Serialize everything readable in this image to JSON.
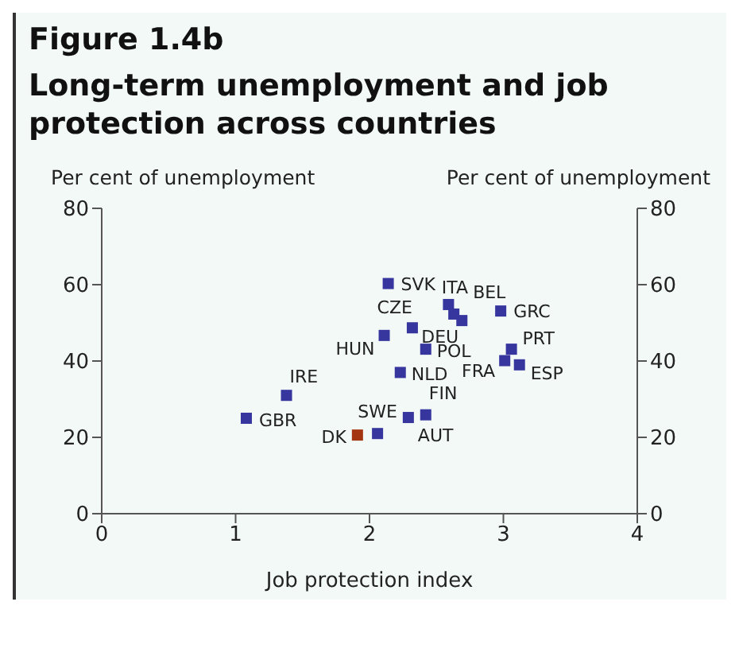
{
  "chart_data": {
    "type": "scatter",
    "title": "Figure 1.4b",
    "subtitle": "Long-term unemployment and job protection across countries",
    "xlabel": "Job protection index",
    "ylabel": "Per cent of unemployment",
    "y2label": "Per cent of unemployment",
    "series": [
      {
        "color": "#36369e",
        "x": [
          2.14,
          2.59,
          2.63,
          2.69,
          2.98,
          2.32,
          2.11,
          2.42,
          3.06,
          3.01,
          3.12,
          2.23,
          1.38,
          1.08,
          2.06,
          2.29,
          2.42
        ],
        "values": [
          60.3,
          54.8,
          52.3,
          50.6,
          53.1,
          48.7,
          46.7,
          43.1,
          43.1,
          40.1,
          39.0,
          37.0,
          31.0,
          25.0,
          21.0,
          25.2,
          25.9
        ]
      },
      {
        "color": "#a33510",
        "x": [
          1.91
        ],
        "values": [
          20.6
        ]
      }
    ],
    "annotations": [
      {
        "text": "SVK",
        "x": 2.14,
        "y": 60.3
      },
      {
        "text": "ITA",
        "x": 2.59,
        "y": 54.8
      },
      {
        "text": "BEL",
        "x": 2.63,
        "y": 52.3
      },
      {
        "text": "DEU",
        "x": 2.69,
        "y": 50.6
      },
      {
        "text": "GRC",
        "x": 2.98,
        "y": 53.1
      },
      {
        "text": "CZE",
        "x": 2.32,
        "y": 48.7
      },
      {
        "text": "HUN",
        "x": 2.11,
        "y": 46.7
      },
      {
        "text": "POL",
        "x": 2.42,
        "y": 43.1
      },
      {
        "text": "PRT",
        "x": 3.06,
        "y": 43.1
      },
      {
        "text": "FRA",
        "x": 3.01,
        "y": 40.1
      },
      {
        "text": "ESP",
        "x": 3.12,
        "y": 39.0
      },
      {
        "text": "NLD",
        "x": 2.23,
        "y": 37.0
      },
      {
        "text": "IRE",
        "x": 1.38,
        "y": 31.0
      },
      {
        "text": "GBR",
        "x": 1.08,
        "y": 25.0
      },
      {
        "text": "SWE",
        "x": 2.06,
        "y": 21.0
      },
      {
        "text": "AUT",
        "x": 2.29,
        "y": 25.2
      },
      {
        "text": "FIN",
        "x": 2.42,
        "y": 25.9
      },
      {
        "text": "DK",
        "x": 1.91,
        "y": 20.6
      }
    ],
    "xlim": [
      0,
      4
    ],
    "xticks": [
      0,
      1,
      2,
      3,
      4
    ],
    "ylim": [
      0,
      80
    ],
    "yticks": [
      0,
      20,
      40,
      60,
      80
    ],
    "y2lim": [
      0,
      80
    ],
    "y2ticks": [
      0,
      20,
      40,
      60,
      80
    ],
    "marker": "square",
    "grid": false,
    "legend": false
  }
}
